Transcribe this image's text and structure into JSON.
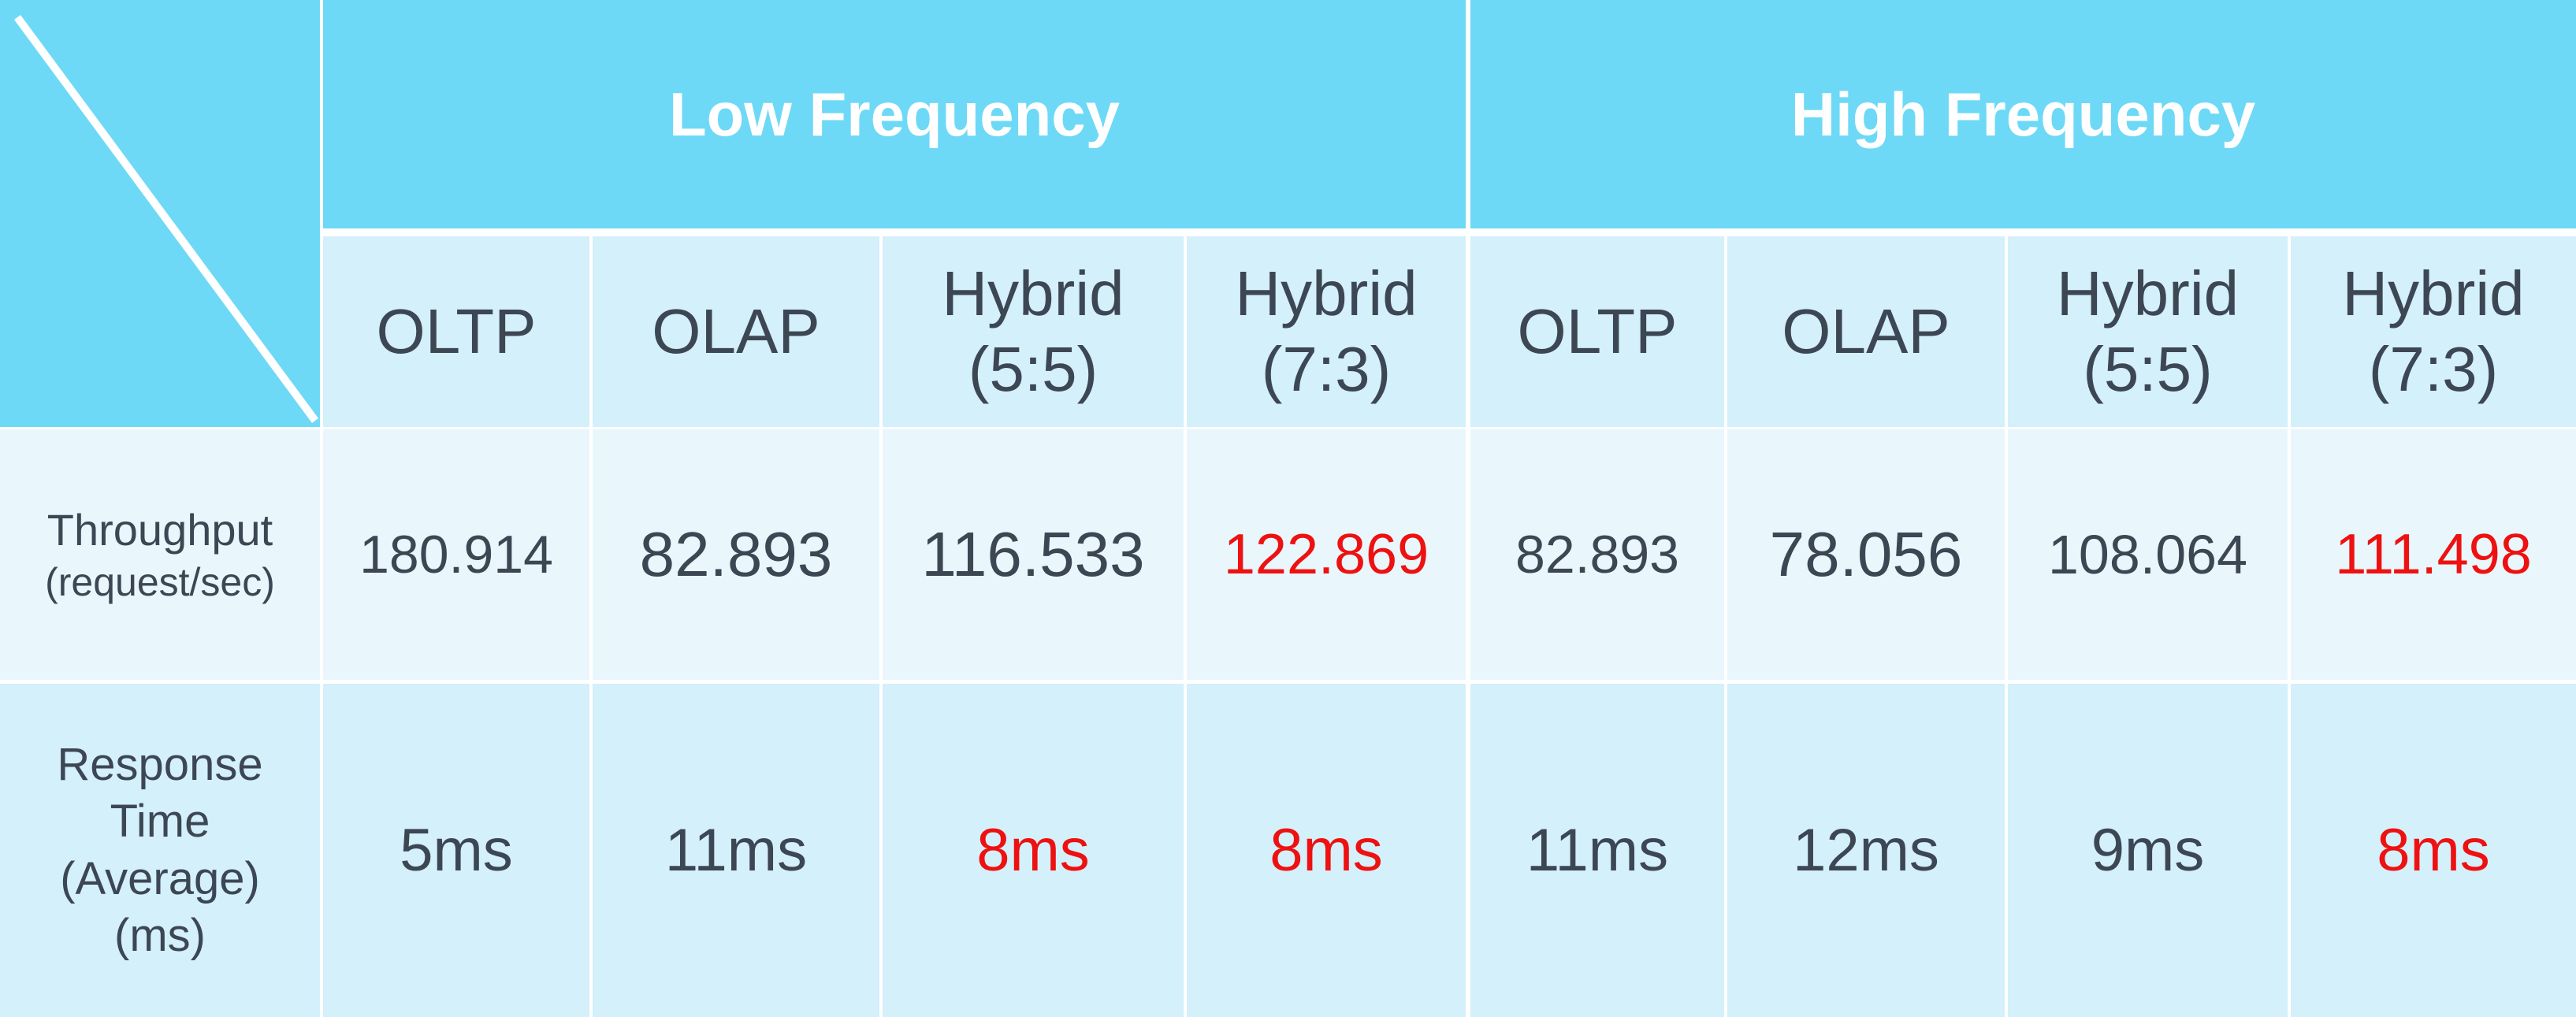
{
  "chart_data": {
    "type": "table",
    "highlight_color": "#ee1111",
    "header_color": "#6dd9f6",
    "column_groups": [
      {
        "label": "Low Frequency",
        "columns": [
          {
            "line1": "OLTP",
            "line2": ""
          },
          {
            "line1": "OLAP",
            "line2": ""
          },
          {
            "line1": "Hybrid",
            "line2": "(5:5)"
          },
          {
            "line1": "Hybrid",
            "line2": "(7:3)"
          }
        ]
      },
      {
        "label": "High Frequency",
        "columns": [
          {
            "line1": "OLTP",
            "line2": ""
          },
          {
            "line1": "OLAP",
            "line2": ""
          },
          {
            "line1": "Hybrid",
            "line2": "(5:5)"
          },
          {
            "line1": "Hybrid",
            "line2": "(7:3)"
          }
        ]
      }
    ],
    "rows": [
      {
        "label": "Throughput",
        "unit": "(request/sec)",
        "values": [
          "180.914",
          "82.893",
          "116.533",
          "122.869",
          "82.893",
          "78.056",
          "108.064",
          "111.498"
        ],
        "highlight": [
          false,
          false,
          false,
          true,
          false,
          false,
          false,
          true
        ]
      },
      {
        "label": "Response Time (Average) (ms)",
        "unit": "",
        "values": [
          "5ms",
          "11ms",
          "8ms",
          "8ms",
          "11ms",
          "12ms",
          "9ms",
          "8ms"
        ],
        "highlight": [
          false,
          false,
          true,
          true,
          false,
          false,
          false,
          true
        ]
      }
    ]
  }
}
